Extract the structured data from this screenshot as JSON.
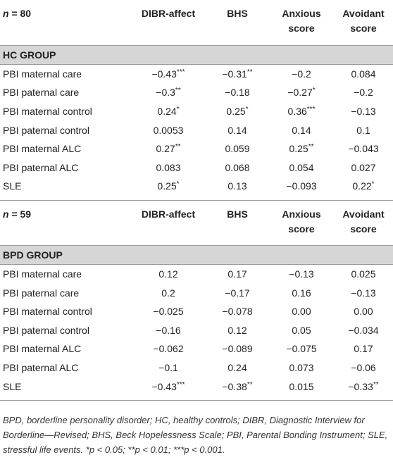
{
  "columns": [
    "DIBR-affect",
    "BHS",
    "Anxious score",
    "Avoidant score"
  ],
  "sections": [
    {
      "n_label": "n",
      "n_value": "= 80",
      "group_title": "HC GROUP",
      "rows": [
        {
          "label": "PBI maternal care",
          "values": [
            [
              "−0.43",
              "***"
            ],
            [
              "−0.31",
              "**"
            ],
            [
              "−0.2",
              ""
            ],
            [
              "0.084",
              ""
            ]
          ]
        },
        {
          "label": "PBI paternal care",
          "values": [
            [
              "−0.3",
              "**"
            ],
            [
              "−0.18",
              ""
            ],
            [
              "−0.27",
              "*"
            ],
            [
              "−0.2",
              ""
            ]
          ]
        },
        {
          "label": "PBI maternal control",
          "values": [
            [
              "0.24",
              "*"
            ],
            [
              "0.25",
              "*"
            ],
            [
              "0.36",
              "***"
            ],
            [
              "−0.13",
              ""
            ]
          ]
        },
        {
          "label": "PBI paternal control",
          "values": [
            [
              "0.0053",
              ""
            ],
            [
              "0.14",
              ""
            ],
            [
              "0.14",
              ""
            ],
            [
              "0.1",
              ""
            ]
          ]
        },
        {
          "label": "PBI maternal ALC",
          "values": [
            [
              "0.27",
              "**"
            ],
            [
              "0.059",
              ""
            ],
            [
              "0.25",
              "**"
            ],
            [
              "−0.043",
              ""
            ]
          ]
        },
        {
          "label": "PBI paternal ALC",
          "values": [
            [
              "0.083",
              ""
            ],
            [
              "0.068",
              ""
            ],
            [
              "0.054",
              ""
            ],
            [
              "0.027",
              ""
            ]
          ]
        },
        {
          "label": "SLE",
          "values": [
            [
              "0.25",
              "*"
            ],
            [
              "0.13",
              ""
            ],
            [
              "−0.093",
              ""
            ],
            [
              "0.22",
              "*"
            ]
          ]
        }
      ]
    },
    {
      "n_label": "n",
      "n_value": "= 59",
      "group_title": "BPD GROUP",
      "rows": [
        {
          "label": "PBI maternal care",
          "values": [
            [
              "0.12",
              ""
            ],
            [
              "0.17",
              ""
            ],
            [
              "−0.13",
              ""
            ],
            [
              "0.025",
              ""
            ]
          ]
        },
        {
          "label": "PBI paternal care",
          "values": [
            [
              "0.2",
              ""
            ],
            [
              "−0.17",
              ""
            ],
            [
              "0.16",
              ""
            ],
            [
              "−0.13",
              ""
            ]
          ]
        },
        {
          "label": "PBI maternal control",
          "values": [
            [
              "−0.025",
              ""
            ],
            [
              "−0.078",
              ""
            ],
            [
              "0.00",
              ""
            ],
            [
              "0.00",
              ""
            ]
          ]
        },
        {
          "label": "PBI paternal control",
          "values": [
            [
              "−0.16",
              ""
            ],
            [
              "0.12",
              ""
            ],
            [
              "0.05",
              ""
            ],
            [
              "−0.034",
              ""
            ]
          ]
        },
        {
          "label": "PBI maternal ALC",
          "values": [
            [
              "−0.062",
              ""
            ],
            [
              "−0.089",
              ""
            ],
            [
              "−0.075",
              ""
            ],
            [
              "0.17",
              ""
            ]
          ]
        },
        {
          "label": "PBI paternal ALC",
          "values": [
            [
              "−0.1",
              ""
            ],
            [
              "0.24",
              ""
            ],
            [
              "0.073",
              ""
            ],
            [
              "−0.06",
              ""
            ]
          ]
        },
        {
          "label": "SLE",
          "values": [
            [
              "−0.43",
              "***"
            ],
            [
              "−0.38",
              "**"
            ],
            [
              "0.015",
              ""
            ],
            [
              "−0.33",
              "**"
            ]
          ]
        }
      ]
    }
  ],
  "footnote": "BPD, borderline personality disorder; HC, healthy controls; DIBR, Diagnostic Interview for Borderline—Revised; BHS, Beck Hopelessness Scale; PBI, Parental Bonding Instrument; SLE, stressful life events. *p < 0.05; **p < 0.01; ***p < 0.001."
}
